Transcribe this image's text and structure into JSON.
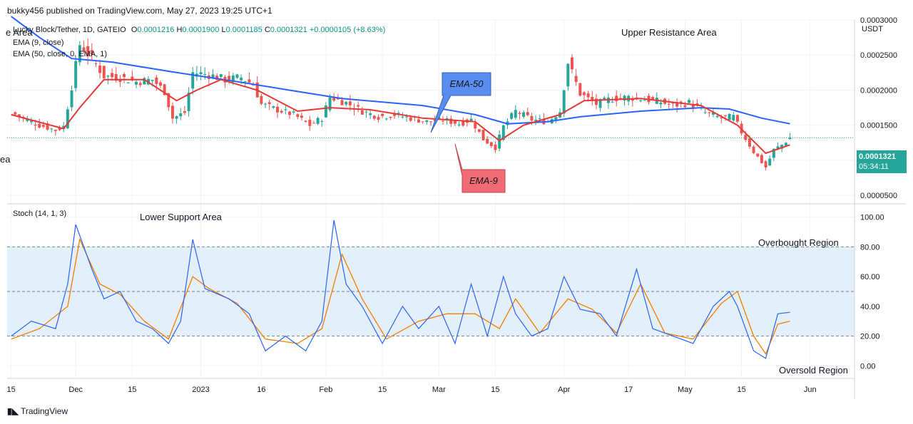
{
  "header": {
    "publisher_line": "bukky456 published on TradingView.com, May 27, 2023 19:25 UTC+1"
  },
  "legend": {
    "clipped_label": "e Area",
    "clipped_label_2": "ea",
    "symbol": "Lucky Block/Tether, 1D, GATEIO",
    "ohlc": {
      "o_label": "O",
      "o": "0.0001216",
      "h_label": "H",
      "h": "0.0001900",
      "l_label": "L",
      "l": "0.0001185",
      "c_label": "C",
      "c": "0.0001321",
      "change": "+0.0000105 (+8.63%)"
    },
    "ema9": "EMA (9, close)",
    "ema50": "EMA (50, close, 0, EMA, 1)",
    "stoch": "Stoch (14, 1, 3)"
  },
  "annotations": {
    "upper_resistance": "Upper Resistance Area",
    "lower_support": "Lower Support Area",
    "overbought": "Overbought Region",
    "oversold": "Oversold Region",
    "ema50_callout": "EMA-50",
    "ema9_callout": "EMA-9"
  },
  "price_tag": {
    "price": "0.0001321",
    "countdown": "05:34:11"
  },
  "footer": {
    "brand": "TradingView"
  },
  "colors": {
    "bull": "#26a69a",
    "bear": "#ef5350",
    "ema9": "#e53935",
    "ema50": "#2962ff",
    "stoch_k": "#2962ff",
    "stoch_d": "#f57c00",
    "band": "#e3f0fc"
  },
  "chart_data": [
    {
      "type": "candlestick",
      "title": "Lucky Block/Tether, 1D, GATEIO",
      "y_axis_label": "USDT",
      "y_ticks": [
        "0.0003000",
        "0.0002500",
        "0.0002000",
        "0.0001500",
        "0.0001000",
        "0.0000500"
      ],
      "y_tick_values": [
        0.0003,
        0.00025,
        0.0002,
        0.00015,
        0.0001,
        5e-05
      ],
      "ylim": [
        4e-05,
        0.0003
      ],
      "x_ticks": [
        "15",
        "Dec",
        "15",
        "2023",
        "16",
        "Feb",
        "15",
        "Mar",
        "15",
        "Apr",
        "17",
        "May",
        "15",
        "Jun"
      ],
      "x_tick_dates": [
        "2022-11-15",
        "2022-12-01",
        "2022-12-15",
        "2023-01-01",
        "2023-01-16",
        "2023-02-01",
        "2023-02-15",
        "2023-03-01",
        "2023-03-15",
        "2023-04-01",
        "2023-04-17",
        "2023-05-01",
        "2023-05-15",
        "2023-06-01"
      ],
      "last_close": 0.0001321,
      "close_series": [
        [
          "2022-11-15",
          0.000168
        ],
        [
          "2022-11-18",
          0.00016
        ],
        [
          "2022-11-22",
          0.00015
        ],
        [
          "2022-11-26",
          0.000143
        ],
        [
          "2022-11-28",
          0.000148
        ],
        [
          "2022-11-30",
          0.000205
        ],
        [
          "2022-12-02",
          0.000265
        ],
        [
          "2022-12-05",
          0.000245
        ],
        [
          "2022-12-08",
          0.00022
        ],
        [
          "2022-12-12",
          0.000218
        ],
        [
          "2022-12-16",
          0.000212
        ],
        [
          "2022-12-20",
          0.000215
        ],
        [
          "2022-12-23",
          0.000198
        ],
        [
          "2022-12-25",
          0.00016
        ],
        [
          "2022-12-28",
          0.000168
        ],
        [
          "2022-12-30",
          0.000225
        ],
        [
          "2023-01-03",
          0.000222
        ],
        [
          "2023-01-07",
          0.000215
        ],
        [
          "2023-01-11",
          0.000218
        ],
        [
          "2023-01-14",
          0.000208
        ],
        [
          "2023-01-16",
          0.00018
        ],
        [
          "2023-01-20",
          0.000172
        ],
        [
          "2023-01-24",
          0.000165
        ],
        [
          "2023-01-28",
          0.00015
        ],
        [
          "2023-01-31",
          0.00016
        ],
        [
          "2023-02-02",
          0.00019
        ],
        [
          "2023-02-06",
          0.000182
        ],
        [
          "2023-02-10",
          0.00017
        ],
        [
          "2023-02-14",
          0.000162
        ],
        [
          "2023-02-18",
          0.000165
        ],
        [
          "2023-02-22",
          0.00016
        ],
        [
          "2023-02-26",
          0.000155
        ],
        [
          "2023-03-02",
          0.000158
        ],
        [
          "2023-03-06",
          0.000152
        ],
        [
          "2023-03-09",
          0.000158
        ],
        [
          "2023-03-12",
          0.00013
        ],
        [
          "2023-03-15",
          0.000118
        ],
        [
          "2023-03-17",
          0.000148
        ],
        [
          "2023-03-20",
          0.00017
        ],
        [
          "2023-03-24",
          0.000158
        ],
        [
          "2023-03-28",
          0.000155
        ],
        [
          "2023-03-31",
          0.00017
        ],
        [
          "2023-04-02",
          0.00024
        ],
        [
          "2023-04-05",
          0.000195
        ],
        [
          "2023-04-09",
          0.00018
        ],
        [
          "2023-04-13",
          0.000188
        ],
        [
          "2023-04-17",
          0.00019
        ],
        [
          "2023-04-21",
          0.000187
        ],
        [
          "2023-04-25",
          0.000183
        ],
        [
          "2023-04-28",
          0.000178
        ],
        [
          "2023-05-02",
          0.000182
        ],
        [
          "2023-05-06",
          0.000168
        ],
        [
          "2023-05-10",
          0.00016
        ],
        [
          "2023-05-13",
          0.000162
        ],
        [
          "2023-05-15",
          0.00014
        ],
        [
          "2023-05-18",
          0.000112
        ],
        [
          "2023-05-21",
          9e-05
        ],
        [
          "2023-05-23",
          0.000115
        ],
        [
          "2023-05-25",
          0.000122
        ],
        [
          "2023-05-27",
          0.0001321
        ]
      ],
      "ema50_series": [
        [
          "2022-11-15",
          0.000305
        ],
        [
          "2022-11-22",
          0.000275
        ],
        [
          "2022-11-30",
          0.000245
        ],
        [
          "2022-12-10",
          0.00024
        ],
        [
          "2022-12-25",
          0.000226
        ],
        [
          "2023-01-10",
          0.000212
        ],
        [
          "2023-01-25",
          0.000198
        ],
        [
          "2023-02-05",
          0.000188
        ],
        [
          "2023-02-25",
          0.000178
        ],
        [
          "2023-03-10",
          0.000165
        ],
        [
          "2023-03-18",
          0.000152
        ],
        [
          "2023-03-28",
          0.000155
        ],
        [
          "2023-04-05",
          0.000162
        ],
        [
          "2023-04-20",
          0.00017
        ],
        [
          "2023-05-05",
          0.000175
        ],
        [
          "2023-05-12",
          0.000173
        ],
        [
          "2023-05-20",
          0.00016
        ],
        [
          "2023-05-27",
          0.000152
        ]
      ],
      "ema9_series": [
        [
          "2022-11-15",
          0.000165
        ],
        [
          "2022-11-28",
          0.000145
        ],
        [
          "2022-12-02",
          0.000175
        ],
        [
          "2022-12-08",
          0.000215
        ],
        [
          "2022-12-18",
          0.000215
        ],
        [
          "2022-12-26",
          0.000185
        ],
        [
          "2022-12-31",
          0.0002
        ],
        [
          "2023-01-06",
          0.000215
        ],
        [
          "2023-01-15",
          0.0002
        ],
        [
          "2023-01-25",
          0.00017
        ],
        [
          "2023-02-02",
          0.000175
        ],
        [
          "2023-02-12",
          0.000172
        ],
        [
          "2023-02-25",
          0.00016
        ],
        [
          "2023-03-10",
          0.000155
        ],
        [
          "2023-03-16",
          0.000128
        ],
        [
          "2023-03-22",
          0.00015
        ],
        [
          "2023-03-31",
          0.000165
        ],
        [
          "2023-04-06",
          0.000185
        ],
        [
          "2023-04-20",
          0.000188
        ],
        [
          "2023-05-05",
          0.000178
        ],
        [
          "2023-05-14",
          0.00015
        ],
        [
          "2023-05-21",
          0.00011
        ],
        [
          "2023-05-27",
          0.000122
        ]
      ]
    },
    {
      "type": "line",
      "title": "Stoch (14, 1, 3)",
      "y_ticks": [
        "100.00",
        "80.00",
        "60.00",
        "40.00",
        "20.00",
        "0.00"
      ],
      "y_tick_values": [
        100,
        80,
        60,
        40,
        20,
        0
      ],
      "ylim": [
        -8,
        108
      ],
      "overbought_level": 80,
      "middle_level": 50,
      "oversold_level": 20,
      "series": [
        {
          "values": [
            [
              "2022-11-15",
              20
            ],
            [
              "2022-11-20",
              30
            ],
            [
              "2022-11-26",
              25
            ],
            [
              "2022-11-29",
              55
            ],
            [
              "2022-12-01",
              95
            ],
            [
              "2022-12-05",
              65
            ],
            [
              "2022-12-08",
              45
            ],
            [
              "2022-12-12",
              50
            ],
            [
              "2022-12-16",
              30
            ],
            [
              "2022-12-20",
              25
            ],
            [
              "2022-12-24",
              15
            ],
            [
              "2022-12-27",
              30
            ],
            [
              "2022-12-30",
              85
            ],
            [
              "2023-01-02",
              52
            ],
            [
              "2023-01-08",
              45
            ],
            [
              "2023-01-13",
              35
            ],
            [
              "2023-01-17",
              10
            ],
            [
              "2023-01-22",
              20
            ],
            [
              "2023-01-27",
              10
            ],
            [
              "2023-01-31",
              30
            ],
            [
              "2023-02-03",
              98
            ],
            [
              "2023-02-06",
              55
            ],
            [
              "2023-02-10",
              40
            ],
            [
              "2023-02-15",
              15
            ],
            [
              "2023-02-20",
              40
            ],
            [
              "2023-02-24",
              25
            ],
            [
              "2023-03-01",
              40
            ],
            [
              "2023-03-05",
              15
            ],
            [
              "2023-03-09",
              55
            ],
            [
              "2023-03-13",
              20
            ],
            [
              "2023-03-17",
              60
            ],
            [
              "2023-03-20",
              35
            ],
            [
              "2023-03-24",
              20
            ],
            [
              "2023-03-28",
              25
            ],
            [
              "2023-04-01",
              60
            ],
            [
              "2023-04-05",
              38
            ],
            [
              "2023-04-10",
              35
            ],
            [
              "2023-04-14",
              20
            ],
            [
              "2023-04-19",
              65
            ],
            [
              "2023-04-23",
              25
            ],
            [
              "2023-04-28",
              20
            ],
            [
              "2023-05-03",
              15
            ],
            [
              "2023-05-08",
              40
            ],
            [
              "2023-05-12",
              50
            ],
            [
              "2023-05-14",
              40
            ],
            [
              "2023-05-18",
              10
            ],
            [
              "2023-05-21",
              5
            ],
            [
              "2023-05-24",
              35
            ],
            [
              "2023-05-27",
              36
            ]
          ]
        },
        {
          "values": [
            [
              "2022-11-15",
              18
            ],
            [
              "2022-11-22",
              25
            ],
            [
              "2022-11-29",
              40
            ],
            [
              "2022-12-02",
              85
            ],
            [
              "2022-12-07",
              55
            ],
            [
              "2022-12-12",
              48
            ],
            [
              "2022-12-18",
              30
            ],
            [
              "2022-12-24",
              18
            ],
            [
              "2022-12-30",
              60
            ],
            [
              "2023-01-03",
              52
            ],
            [
              "2023-01-10",
              42
            ],
            [
              "2023-01-17",
              18
            ],
            [
              "2023-01-25",
              15
            ],
            [
              "2023-01-31",
              25
            ],
            [
              "2023-02-05",
              75
            ],
            [
              "2023-02-10",
              45
            ],
            [
              "2023-02-16",
              18
            ],
            [
              "2023-02-24",
              30
            ],
            [
              "2023-03-03",
              35
            ],
            [
              "2023-03-10",
              35
            ],
            [
              "2023-03-16",
              25
            ],
            [
              "2023-03-20",
              45
            ],
            [
              "2023-03-26",
              22
            ],
            [
              "2023-04-02",
              45
            ],
            [
              "2023-04-08",
              38
            ],
            [
              "2023-04-14",
              22
            ],
            [
              "2023-04-20",
              55
            ],
            [
              "2023-04-26",
              22
            ],
            [
              "2023-05-03",
              18
            ],
            [
              "2023-05-10",
              42
            ],
            [
              "2023-05-14",
              50
            ],
            [
              "2023-05-18",
              20
            ],
            [
              "2023-05-21",
              8
            ],
            [
              "2023-05-24",
              28
            ],
            [
              "2023-05-27",
              30
            ]
          ]
        }
      ]
    }
  ]
}
